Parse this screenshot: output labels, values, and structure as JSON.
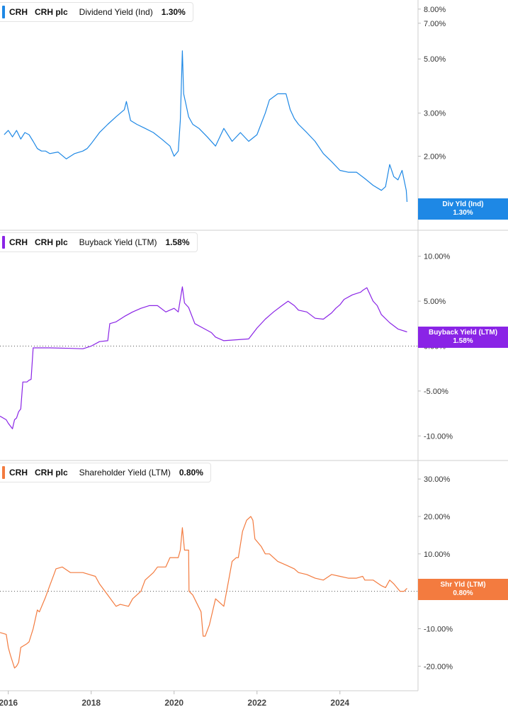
{
  "chart_data": [
    {
      "type": "line",
      "panel": "dividend",
      "legend": {
        "ticker": "CRH",
        "company": "CRH plc",
        "metric": "Dividend Yield (Ind)",
        "value": "1.30%"
      },
      "flag": {
        "label": "Div Yld (Ind)",
        "value": "1.30%"
      },
      "color": "#1e88e5",
      "scale": "log",
      "ylim": [
        1.2,
        8.6
      ],
      "yticks": [
        {
          "v": 8,
          "label": "8.00%"
        },
        {
          "v": 7,
          "label": "7.00%"
        },
        {
          "v": 5,
          "label": "5.00%"
        },
        {
          "v": 3,
          "label": "3.00%"
        },
        {
          "v": 2,
          "label": "2.00%"
        }
      ],
      "zero_line": false,
      "series": [
        {
          "x": [
            2015.9,
            2016.0,
            2016.1,
            2016.2,
            2016.3,
            2016.4,
            2016.5,
            2016.6,
            2016.7,
            2016.8,
            2016.9,
            2017.0,
            2017.2,
            2017.4,
            2017.6,
            2017.8,
            2017.9,
            2018.0,
            2018.2,
            2018.4,
            2018.6,
            2018.8,
            2018.85,
            2018.95,
            2019.1,
            2019.3,
            2019.5,
            2019.7,
            2019.9,
            2020.0,
            2020.1,
            2020.15,
            2020.2,
            2020.23,
            2020.28,
            2020.35,
            2020.45,
            2020.6,
            2020.8,
            2021.0,
            2021.2,
            2021.4,
            2021.6,
            2021.8,
            2022.0,
            2022.2,
            2022.3,
            2022.5,
            2022.7,
            2022.8,
            2022.9,
            2023.0,
            2023.2,
            2023.4,
            2023.6,
            2023.8,
            2024.0,
            2024.2,
            2024.4,
            2024.6,
            2024.8,
            2025.0,
            2025.1,
            2025.2,
            2025.3,
            2025.4,
            2025.5,
            2025.6,
            2025.62
          ],
          "values": [
            2.45,
            2.55,
            2.4,
            2.55,
            2.35,
            2.5,
            2.45,
            2.3,
            2.15,
            2.1,
            2.1,
            2.05,
            2.08,
            1.95,
            2.05,
            2.1,
            2.15,
            2.25,
            2.5,
            2.7,
            2.9,
            3.1,
            3.35,
            2.8,
            2.7,
            2.6,
            2.5,
            2.35,
            2.2,
            2.0,
            2.1,
            2.8,
            5.4,
            3.6,
            3.3,
            2.9,
            2.7,
            2.6,
            2.4,
            2.2,
            2.6,
            2.3,
            2.5,
            2.3,
            2.45,
            3.0,
            3.4,
            3.6,
            3.6,
            3.1,
            2.85,
            2.7,
            2.5,
            2.3,
            2.05,
            1.9,
            1.75,
            1.72,
            1.72,
            1.62,
            1.52,
            1.45,
            1.5,
            1.85,
            1.65,
            1.6,
            1.75,
            1.45,
            1.3
          ]
        }
      ]
    },
    {
      "type": "line",
      "panel": "buyback",
      "legend": {
        "ticker": "CRH",
        "company": "CRH plc",
        "metric": "Buyback Yield (LTM)",
        "value": "1.58%"
      },
      "flag": {
        "label": "Buyback Yield (LTM)",
        "value": "1.58%"
      },
      "color": "#8a24e6",
      "scale": "linear",
      "ylim": [
        -12.5,
        12.5
      ],
      "yticks": [
        {
          "v": 10,
          "label": "10.00%"
        },
        {
          "v": 5,
          "label": "5.00%"
        },
        {
          "v": 0,
          "label": "0.00%"
        },
        {
          "v": -5,
          "label": "-5.00%"
        },
        {
          "v": -10,
          "label": "-10.00%"
        }
      ],
      "zero_line": true,
      "series": [
        {
          "x": [
            2015.8,
            2015.95,
            2016.0,
            2016.1,
            2016.15,
            2016.2,
            2016.25,
            2016.3,
            2016.35,
            2016.4,
            2016.45,
            2016.5,
            2016.55,
            2016.6,
            2016.7,
            2016.75,
            2017.0,
            2017.5,
            2017.8,
            2018.0,
            2018.2,
            2018.4,
            2018.45,
            2018.6,
            2018.8,
            2019.0,
            2019.2,
            2019.4,
            2019.6,
            2019.8,
            2020.0,
            2020.1,
            2020.2,
            2020.25,
            2020.35,
            2020.5,
            2020.7,
            2020.9,
            2021.0,
            2021.2,
            2021.5,
            2021.8,
            2022.0,
            2022.2,
            2022.4,
            2022.6,
            2022.75,
            2022.9,
            2023.0,
            2023.2,
            2023.4,
            2023.6,
            2023.8,
            2023.9,
            2024.0,
            2024.1,
            2024.3,
            2024.5,
            2024.55,
            2024.65,
            2024.8,
            2024.9,
            2025.0,
            2025.2,
            2025.4,
            2025.62
          ],
          "values": [
            -7.8,
            -8.2,
            -8.6,
            -9.2,
            -8.2,
            -8.0,
            -7.3,
            -7.0,
            -4.0,
            -4.0,
            -4.0,
            -3.8,
            -3.7,
            -0.2,
            -0.2,
            -0.2,
            -0.2,
            -0.25,
            -0.3,
            0.0,
            0.5,
            0.6,
            2.5,
            2.7,
            3.3,
            3.8,
            4.2,
            4.5,
            4.5,
            3.8,
            4.2,
            3.8,
            6.6,
            4.8,
            4.3,
            2.5,
            2.0,
            1.5,
            1.0,
            0.6,
            0.7,
            0.8,
            2.0,
            3.0,
            3.8,
            4.5,
            5.0,
            4.5,
            4.0,
            3.8,
            3.1,
            3.0,
            3.7,
            4.2,
            4.6,
            5.2,
            5.7,
            6.0,
            6.2,
            6.5,
            5.0,
            4.5,
            3.5,
            2.6,
            1.9,
            1.58
          ]
        }
      ]
    },
    {
      "type": "line",
      "panel": "shareholder",
      "legend": {
        "ticker": "CRH",
        "company": "CRH plc",
        "metric": "Shareholder Yield (LTM)",
        "value": "0.80%"
      },
      "flag": {
        "label": "Shr Yld (LTM)",
        "value": "0.80%"
      },
      "color": "#f37b3f",
      "scale": "linear",
      "ylim": [
        -26,
        34
      ],
      "yticks": [
        {
          "v": 30,
          "label": "30.00%"
        },
        {
          "v": 20,
          "label": "20.00%"
        },
        {
          "v": 10,
          "label": "10.00%"
        },
        {
          "v": 0,
          "label": "0.00%"
        },
        {
          "v": -10,
          "label": "-10.00%"
        },
        {
          "v": -20,
          "label": "-20.00%"
        }
      ],
      "zero_line": true,
      "series": [
        {
          "x": [
            2015.8,
            2015.95,
            2016.0,
            2016.05,
            2016.15,
            2016.2,
            2016.25,
            2016.3,
            2016.45,
            2016.5,
            2016.6,
            2016.7,
            2016.75,
            2016.9,
            2017.0,
            2017.1,
            2017.15,
            2017.3,
            2017.5,
            2017.8,
            2018.1,
            2018.2,
            2018.4,
            2018.6,
            2018.7,
            2018.9,
            2019.0,
            2019.2,
            2019.3,
            2019.5,
            2019.6,
            2019.8,
            2019.9,
            2020.0,
            2020.1,
            2020.15,
            2020.2,
            2020.25,
            2020.3,
            2020.35,
            2020.36,
            2020.45,
            2020.65,
            2020.7,
            2020.75,
            2020.85,
            2021.0,
            2021.2,
            2021.3,
            2021.4,
            2021.5,
            2021.55,
            2021.65,
            2021.75,
            2021.85,
            2021.9,
            2021.95,
            2022.1,
            2022.2,
            2022.3,
            2022.5,
            2022.7,
            2022.9,
            2023.0,
            2023.2,
            2023.4,
            2023.6,
            2023.8,
            2024.0,
            2024.2,
            2024.4,
            2024.55,
            2024.6,
            2024.8,
            2025.0,
            2025.1,
            2025.2,
            2025.3,
            2025.45,
            2025.55,
            2025.62
          ],
          "values": [
            -11,
            -11.5,
            -15,
            -17,
            -20.5,
            -20,
            -19,
            -15,
            -14,
            -13.5,
            -10,
            -5,
            -5.5,
            -1.5,
            1.5,
            4.5,
            6,
            6.5,
            5,
            5,
            4,
            2,
            -1,
            -4,
            -3.5,
            -4,
            -2,
            0,
            3,
            5,
            6.5,
            6.5,
            9,
            9,
            9,
            11,
            17,
            11,
            11,
            11,
            0,
            -1,
            -5.5,
            -12,
            -12,
            -9,
            -2,
            -4,
            2,
            8,
            9,
            9,
            16,
            19,
            20,
            19,
            14,
            12,
            10,
            10,
            8,
            7,
            6,
            5,
            4.5,
            3.5,
            3,
            4.5,
            4,
            3.5,
            3.5,
            4,
            3,
            3,
            1.5,
            1,
            3,
            2,
            0,
            0,
            0.8
          ]
        }
      ]
    }
  ],
  "xaxis": {
    "range": [
      2015.8,
      2025.85
    ],
    "ticks": [
      {
        "v": 2016,
        "label": "2016"
      },
      {
        "v": 2018,
        "label": "2018"
      },
      {
        "v": 2020,
        "label": "2020"
      },
      {
        "v": 2022,
        "label": "2022"
      },
      {
        "v": 2024,
        "label": "2024"
      }
    ]
  }
}
